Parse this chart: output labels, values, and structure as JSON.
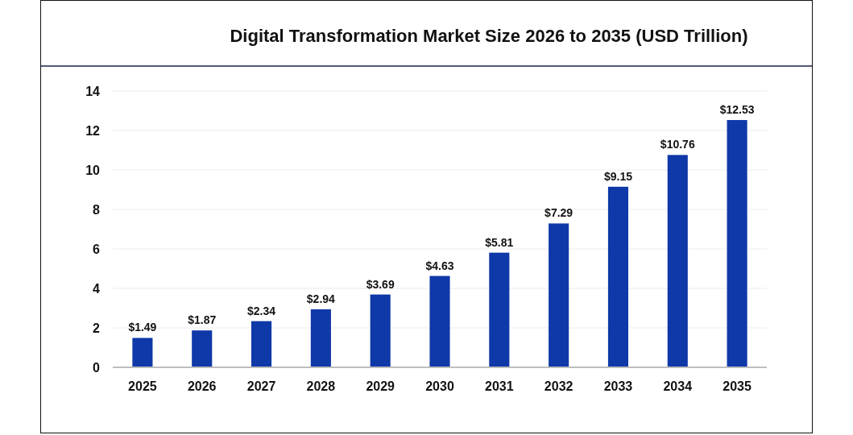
{
  "chart_data": {
    "type": "bar",
    "title": "Digital Transformation Market Size 2026 to 2035 (USD Trillion)",
    "categories": [
      "2025",
      "2026",
      "2027",
      "2028",
      "2029",
      "2030",
      "2031",
      "2032",
      "2033",
      "2034",
      "2035"
    ],
    "values": [
      1.49,
      1.87,
      2.34,
      2.94,
      3.69,
      4.63,
      5.81,
      7.29,
      9.15,
      10.76,
      12.53
    ],
    "value_labels": [
      "$1.49",
      "$1.87",
      "$2.34",
      "$2.94",
      "$3.69",
      "$4.63",
      "$5.81",
      "$7.29",
      "$9.15",
      "$10.76",
      "$12.53"
    ],
    "color": "#0f38a8",
    "ylim": [
      0,
      14
    ],
    "yticks": [
      0,
      2,
      4,
      6,
      8,
      10,
      12,
      14
    ],
    "grid": "y"
  }
}
